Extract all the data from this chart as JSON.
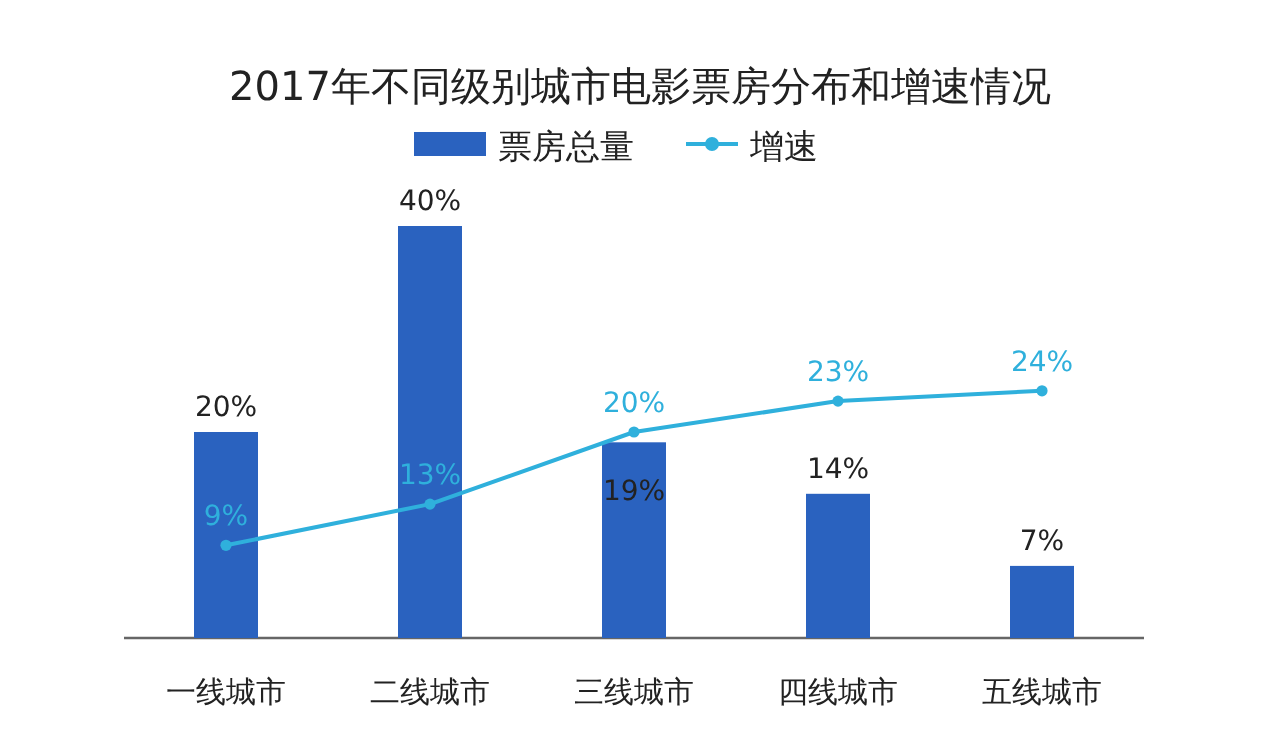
{
  "chart_data": {
    "type": "bar",
    "title": "2017年不同级别城市电影票房分布和增速情况",
    "categories": [
      "一线城市",
      "二线城市",
      "三线城市",
      "四线城市",
      "五线城市"
    ],
    "series": [
      {
        "name": "票房总量",
        "color": "#2a62bf",
        "values": [
          20,
          40,
          19,
          14,
          7
        ],
        "value_labels": [
          "20%",
          "40%",
          "19%",
          "14%",
          "7%"
        ]
      },
      {
        "name": "增速",
        "type": "line",
        "color": "#2fb0dc",
        "values": [
          9,
          13,
          20,
          23,
          24
        ],
        "value_labels": [
          "9%",
          "13%",
          "20%",
          "23%",
          "24%"
        ],
        "marker": "circle"
      }
    ],
    "tick_labels": "x",
    "legend": "top"
  }
}
